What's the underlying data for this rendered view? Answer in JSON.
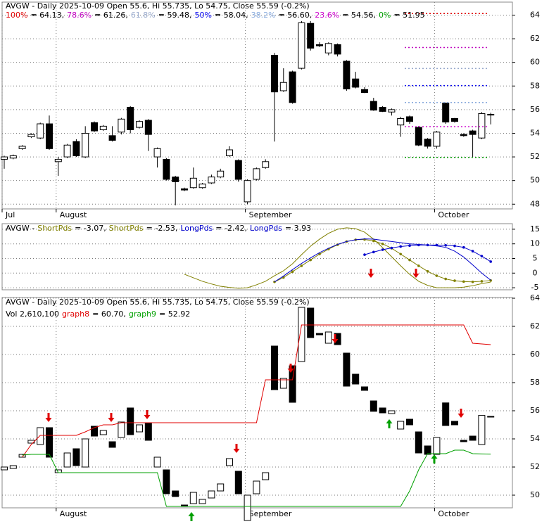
{
  "chart_data": [
    {
      "type": "candlestick",
      "title": "AVGW - Daily 2025-10-09 Open 55.6, Hi 55.735, Lo 54.75, Close 55.59 (-0.2%)",
      "categories": [
        "Jul",
        null,
        null,
        null,
        null,
        null,
        "August",
        null,
        null,
        null,
        null,
        null,
        null,
        null,
        null,
        null,
        null,
        null,
        null,
        null,
        null,
        null,
        null,
        null,
        null,
        null,
        null,
        "September",
        null,
        null,
        null,
        null,
        null,
        null,
        null,
        null,
        null,
        null,
        null,
        null,
        null,
        null,
        null,
        null,
        null,
        null,
        null,
        null,
        "October",
        null,
        null,
        null,
        null,
        null,
        null
      ],
      "open": [
        51.8,
        51.9,
        52.7,
        53.7,
        53.6,
        54.8,
        51.6,
        52.0,
        53.3,
        52.0,
        54.9,
        54.3,
        53.8,
        54.1,
        56.2,
        54.5,
        55.1,
        52.0,
        51.8,
        50.3,
        49.3,
        49.4,
        49.4,
        49.8,
        50.3,
        52.1,
        51.7,
        48.2,
        50.1,
        51.1,
        60.6,
        57.6,
        59.2,
        59.5,
        63.3,
        61.5,
        60.8,
        61.5,
        60.1,
        58.6,
        57.7,
        56.7,
        56.2,
        55.8,
        54.7,
        55.4,
        54.5,
        53.5,
        52.9,
        56.56,
        55.25,
        53.9,
        54.2,
        53.6,
        55.6
      ],
      "high": [
        52.1,
        52.2,
        53.0,
        54.0,
        54.9,
        55.5,
        52.0,
        53.1,
        53.5,
        54.6,
        55.0,
        54.7,
        54.6,
        55.3,
        56.3,
        55.1,
        55.2,
        52.8,
        51.9,
        50.4,
        49.4,
        51.1,
        49.8,
        50.5,
        51.0,
        52.9,
        51.8,
        50.1,
        51.1,
        51.8,
        60.8,
        59.5,
        59.3,
        63.5,
        63.5,
        61.7,
        61.7,
        61.6,
        60.2,
        59.2,
        57.9,
        57.0,
        56.3,
        56.1,
        55.4,
        55.5,
        54.6,
        53.6,
        54.2,
        56.6,
        55.3,
        54.0,
        54.3,
        55.8,
        55.735
      ],
      "low": [
        51.0,
        51.8,
        52.6,
        53.6,
        53.5,
        52.6,
        50.4,
        51.9,
        52.0,
        51.9,
        54.1,
        54.2,
        53.3,
        53.9,
        54.0,
        54.4,
        52.5,
        51.1,
        50.0,
        47.9,
        49.1,
        49.3,
        49.3,
        49.7,
        50.2,
        52.0,
        49.9,
        48.0,
        50.0,
        51.0,
        53.3,
        57.5,
        56.5,
        59.4,
        61.0,
        61.3,
        60.6,
        60.5,
        57.6,
        57.8,
        57.4,
        55.9,
        55.8,
        55.5,
        53.7,
        54.8,
        52.9,
        52.7,
        52.7,
        54.8,
        54.9,
        53.7,
        52.0,
        53.5,
        54.75
      ],
      "close": [
        52.0,
        52.1,
        52.9,
        53.9,
        54.8,
        52.7,
        51.8,
        53.0,
        52.1,
        54.0,
        54.2,
        54.6,
        53.4,
        55.2,
        54.3,
        55.0,
        53.9,
        52.7,
        50.1,
        49.9,
        49.2,
        50.2,
        49.7,
        50.3,
        50.8,
        52.6,
        50.1,
        50.0,
        51.0,
        51.6,
        57.5,
        58.3,
        56.6,
        63.35,
        61.2,
        61.4,
        61.6,
        60.7,
        57.75,
        57.9,
        57.45,
        55.96,
        55.85,
        56.0,
        55.25,
        55.0,
        53.0,
        52.9,
        54.1,
        54.95,
        55.0,
        53.8,
        53.9,
        55.67,
        55.59
      ],
      "up_color": "#ffffff",
      "down_color": "#000000",
      "fib_levels": [
        {
          "label": "100%",
          "value": 64.13,
          "value_label": "= 64.13,",
          "color": "#e00000"
        },
        {
          "label": "78.6%",
          "value": 61.26,
          "value_label": "= 61.26,",
          "color": "#c000c0"
        },
        {
          "label": "61.8%",
          "value": 59.48,
          "value_label": "= 59.48,",
          "color": "#99aacc"
        },
        {
          "label": "50%",
          "value": 58.04,
          "value_label": "= 58.04,",
          "color": "#0000ee"
        },
        {
          "label": "38.2%",
          "value": 56.6,
          "value_label": "= 56.60,",
          "color": "#88aadd"
        },
        {
          "label": "23.6%",
          "value": 54.56,
          "value_label": "= 54.56,",
          "color": "#cc00cc"
        },
        {
          "label": "0%",
          "value": 51.95,
          "value_label": "= 51.95",
          "color": "#00a000"
        }
      ],
      "ylim": [
        47.6,
        65.1
      ],
      "yticks": [
        48,
        50,
        52,
        54,
        56,
        58,
        60,
        62,
        64
      ],
      "grid": true
    },
    {
      "type": "line",
      "title": "AVGW -",
      "series": [
        {
          "name": "ShortPds",
          "color": "#808000",
          "markers": false,
          "value_label": "= -3.07,",
          "values": [
            null,
            null,
            null,
            null,
            null,
            null,
            null,
            null,
            null,
            null,
            null,
            null,
            null,
            null,
            null,
            null,
            null,
            null,
            null,
            null,
            -0.4,
            -1.6,
            -2.8,
            -3.7,
            -4.5,
            -4.9,
            -5.2,
            -5.0,
            -4.0,
            -2.8,
            -0.9,
            0.8,
            3.2,
            6.3,
            9.2,
            11.6,
            13.6,
            15.0,
            15.5,
            15.2,
            14.0,
            11.6,
            8.7,
            5.6,
            2.5,
            -0.4,
            -2.8,
            -4.2,
            -5.0,
            -5.0,
            -5.0,
            -4.8,
            -4.3,
            -3.6,
            -3.07
          ]
        },
        {
          "name": "ShortPds",
          "color": "#808000",
          "markers": true,
          "value_label": "= -2.53,",
          "values": [
            null,
            null,
            null,
            null,
            null,
            null,
            null,
            null,
            null,
            null,
            null,
            null,
            null,
            null,
            null,
            null,
            null,
            null,
            null,
            null,
            null,
            null,
            null,
            null,
            null,
            null,
            null,
            null,
            null,
            null,
            -3.0,
            -1.5,
            0.5,
            2.5,
            4.5,
            6.5,
            8.2,
            9.7,
            10.8,
            11.4,
            11.5,
            11.0,
            10.0,
            8.5,
            6.5,
            4.5,
            2.5,
            0.6,
            -0.9,
            -2.0,
            -2.6,
            -2.9,
            -3.0,
            -2.8,
            -2.53
          ]
        },
        {
          "name": "LongPds",
          "color": "#0000cc",
          "markers": false,
          "value_label": "= -2.42,",
          "values": [
            null,
            null,
            null,
            null,
            null,
            null,
            null,
            null,
            null,
            null,
            null,
            null,
            null,
            null,
            null,
            null,
            null,
            null,
            null,
            null,
            null,
            null,
            null,
            null,
            null,
            null,
            null,
            null,
            null,
            null,
            -3.0,
            -1.0,
            1.2,
            3.3,
            5.2,
            7.0,
            8.5,
            9.8,
            10.8,
            11.4,
            11.7,
            11.6,
            11.2,
            10.8,
            10.4,
            10.0,
            9.8,
            9.6,
            9.3,
            8.8,
            7.5,
            5.5,
            2.8,
            0.0,
            -2.42
          ]
        },
        {
          "name": "LongPds",
          "color": "#0000cc",
          "markers": true,
          "value_label": "= 3.93",
          "values": [
            null,
            null,
            null,
            null,
            null,
            null,
            null,
            null,
            null,
            null,
            null,
            null,
            null,
            null,
            null,
            null,
            null,
            null,
            null,
            null,
            null,
            null,
            null,
            null,
            null,
            null,
            null,
            null,
            null,
            null,
            null,
            null,
            null,
            null,
            null,
            null,
            null,
            null,
            null,
            null,
            6.3,
            7.2,
            8.0,
            8.6,
            9.1,
            9.4,
            9.6,
            9.6,
            9.6,
            9.5,
            9.3,
            8.8,
            7.5,
            5.8,
            3.93
          ]
        }
      ],
      "ylim": [
        -5.7,
        16.9
      ],
      "yticks": [
        -5,
        0,
        5,
        10,
        15
      ],
      "grid": true
    },
    {
      "type": "candlestick-body",
      "volume": 2610100,
      "volume_label": "Vol 2,610,100",
      "categories": [
        null,
        null,
        null,
        null,
        null,
        null,
        "August",
        null,
        null,
        null,
        null,
        null,
        null,
        null,
        null,
        null,
        null,
        null,
        null,
        null,
        null,
        null,
        null,
        null,
        null,
        null,
        null,
        "September",
        null,
        null,
        null,
        null,
        null,
        null,
        null,
        null,
        null,
        null,
        null,
        null,
        null,
        null,
        null,
        null,
        null,
        null,
        null,
        null,
        "October",
        null,
        null,
        null,
        null,
        null,
        null
      ],
      "series": [
        {
          "name": "graph8",
          "color": "#e00000",
          "value_label": "= 60.70,",
          "values": [
            null,
            null,
            52.7,
            53.6,
            54.25,
            54.25,
            54.25,
            54.25,
            54.25,
            54.5,
            54.8,
            55.0,
            55.0,
            55.15,
            55.15,
            55.15,
            55.15,
            55.15,
            55.15,
            55.15,
            55.15,
            55.15,
            55.15,
            55.15,
            55.15,
            55.15,
            55.15,
            55.15,
            55.15,
            58.2,
            58.2,
            58.2,
            58.2,
            62.1,
            62.1,
            62.1,
            62.1,
            62.1,
            62.1,
            62.1,
            62.1,
            62.1,
            62.1,
            62.1,
            62.1,
            62.1,
            62.1,
            62.1,
            62.1,
            62.1,
            62.1,
            62.1,
            60.8,
            60.75,
            60.7
          ]
        },
        {
          "name": "graph9",
          "color": "#00a000",
          "value_label": "= 52.92",
          "values": [
            null,
            null,
            52.85,
            52.9,
            52.9,
            52.9,
            51.6,
            51.6,
            51.6,
            51.6,
            51.6,
            51.6,
            51.6,
            51.6,
            51.6,
            51.6,
            51.6,
            51.6,
            49.2,
            49.2,
            49.2,
            49.2,
            49.2,
            49.2,
            49.2,
            49.2,
            49.2,
            49.2,
            49.2,
            49.2,
            49.2,
            49.2,
            49.2,
            49.2,
            49.2,
            49.2,
            49.2,
            49.2,
            49.2,
            49.2,
            49.2,
            49.2,
            49.2,
            49.2,
            49.2,
            50.3,
            51.8,
            52.95,
            52.95,
            52.95,
            53.2,
            53.2,
            52.95,
            52.93,
            52.92
          ]
        }
      ],
      "ylim": [
        49.1,
        64.05
      ],
      "yticks": [
        50,
        52,
        54,
        56,
        58,
        60,
        62,
        64
      ],
      "grid": true
    }
  ]
}
